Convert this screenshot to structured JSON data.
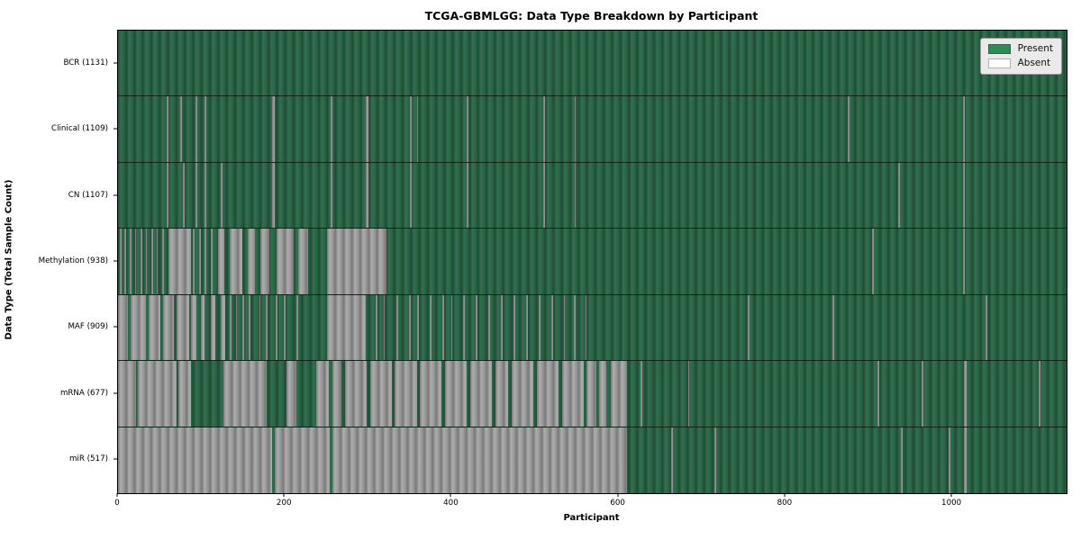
{
  "title": "TCGA-GBMLGG: Data Type Breakdown by Participant",
  "colors": {
    "present": "#2e8b57",
    "absent": "#ffffff",
    "present_texture_dark": "#1e4c36",
    "present_texture_light": "#33704f",
    "absent_texture_dark": "#787878",
    "absent_texture_light": "#adadad",
    "axes_border": "#000000",
    "legend_background": "#eaeaea"
  },
  "chart_data": {
    "type": "heatmap",
    "title": "TCGA-GBMLGG: Data Type Breakdown by Participant",
    "xlabel": "Participant",
    "ylabel": "Data Type (Total Sample Count)",
    "x_ticks": [
      0,
      200,
      400,
      600,
      800,
      1000
    ],
    "x_range": [
      0,
      1137
    ],
    "total_participants": 1131,
    "grid": false,
    "legend_position": "upper right",
    "legend_items": [
      {
        "label": "Present",
        "color": "#2e8b57"
      },
      {
        "label": "Absent",
        "color": "#ffffff"
      }
    ],
    "cell_states": {
      "present": "green",
      "absent": "white"
    },
    "rows": [
      {
        "data_type": "BCR",
        "label": "BCR (1131)",
        "total": 1131,
        "absent_segments": []
      },
      {
        "data_type": "Clinical",
        "label": "Clinical (1109)",
        "total": 1109,
        "absent_segments": [
          [
            58,
            60
          ],
          [
            75,
            77
          ],
          [
            93,
            95
          ],
          [
            104,
            106
          ],
          [
            185,
            188
          ],
          [
            255,
            257
          ],
          [
            297,
            300
          ],
          [
            350,
            352
          ],
          [
            358,
            360
          ],
          [
            418,
            420
          ],
          [
            510,
            512
          ],
          [
            547,
            549
          ],
          [
            875,
            877
          ],
          [
            1013,
            1015
          ]
        ]
      },
      {
        "data_type": "CN",
        "label": "CN (1107)",
        "total": 1107,
        "absent_segments": [
          [
            58,
            60
          ],
          [
            78,
            80
          ],
          [
            93,
            95
          ],
          [
            104,
            106
          ],
          [
            123,
            125
          ],
          [
            185,
            188
          ],
          [
            255,
            257
          ],
          [
            297,
            300
          ],
          [
            350,
            352
          ],
          [
            418,
            420
          ],
          [
            510,
            512
          ],
          [
            547,
            549
          ],
          [
            935,
            937
          ],
          [
            1013,
            1015
          ]
        ]
      },
      {
        "data_type": "Methylation",
        "label": "Methylation (938)",
        "total": 938,
        "absent_segments": [
          [
            2,
            4
          ],
          [
            8,
            10
          ],
          [
            14,
            16
          ],
          [
            20,
            22
          ],
          [
            27,
            29
          ],
          [
            33,
            35
          ],
          [
            40,
            42
          ],
          [
            46,
            48
          ],
          [
            53,
            55
          ],
          [
            60,
            87
          ],
          [
            90,
            92
          ],
          [
            97,
            99
          ],
          [
            104,
            106
          ],
          [
            111,
            113
          ],
          [
            120,
            127
          ],
          [
            134,
            149
          ],
          [
            155,
            164
          ],
          [
            171,
            181
          ],
          [
            190,
            211
          ],
          [
            216,
            228
          ],
          [
            251,
            322
          ],
          [
            904,
            906
          ],
          [
            1013,
            1015
          ]
        ]
      },
      {
        "data_type": "MAF",
        "label": "MAF (909)",
        "total": 909,
        "absent_segments": [
          [
            0,
            12
          ],
          [
            15,
            34
          ],
          [
            37,
            51
          ],
          [
            54,
            67
          ],
          [
            70,
            85
          ],
          [
            88,
            94
          ],
          [
            99,
            104
          ],
          [
            111,
            117
          ],
          [
            123,
            128
          ],
          [
            134,
            136
          ],
          [
            141,
            143
          ],
          [
            149,
            151
          ],
          [
            157,
            159
          ],
          [
            169,
            171
          ],
          [
            177,
            179
          ],
          [
            189,
            191
          ],
          [
            199,
            201
          ],
          [
            214,
            216
          ],
          [
            251,
            297
          ],
          [
            309,
            311
          ],
          [
            318,
            320
          ],
          [
            334,
            336
          ],
          [
            349,
            351
          ],
          [
            359,
            361
          ],
          [
            374,
            376
          ],
          [
            389,
            391
          ],
          [
            399,
            401
          ],
          [
            414,
            416
          ],
          [
            429,
            431
          ],
          [
            444,
            446
          ],
          [
            459,
            461
          ],
          [
            474,
            476
          ],
          [
            489,
            491
          ],
          [
            504,
            506
          ],
          [
            519,
            521
          ],
          [
            534,
            536
          ],
          [
            546,
            548
          ],
          [
            560,
            562
          ],
          [
            755,
            757
          ],
          [
            856,
            858
          ],
          [
            1040,
            1042
          ]
        ]
      },
      {
        "data_type": "mRNA",
        "label": "mRNA (677)",
        "total": 677,
        "absent_segments": [
          [
            0,
            22
          ],
          [
            24,
            70
          ],
          [
            72,
            88
          ],
          [
            126,
            178
          ],
          [
            202,
            214
          ],
          [
            238,
            253
          ],
          [
            257,
            268
          ],
          [
            272,
            298
          ],
          [
            302,
            328
          ],
          [
            332,
            358
          ],
          [
            362,
            388
          ],
          [
            392,
            418
          ],
          [
            422,
            448
          ],
          [
            452,
            468
          ],
          [
            472,
            498
          ],
          [
            502,
            528
          ],
          [
            532,
            558
          ],
          [
            562,
            573
          ],
          [
            577,
            585
          ],
          [
            591,
            610
          ],
          [
            626,
            628
          ],
          [
            683,
            685
          ],
          [
            910,
            912
          ],
          [
            963,
            965
          ],
          [
            1014,
            1017
          ],
          [
            1104,
            1106
          ]
        ]
      },
      {
        "data_type": "miR",
        "label": "miR (517)",
        "total": 517,
        "absent_segments": [
          [
            0,
            185
          ],
          [
            188,
            254
          ],
          [
            257,
            610
          ],
          [
            663,
            665
          ],
          [
            715,
            717
          ],
          [
            938,
            940
          ],
          [
            996,
            998
          ],
          [
            1014,
            1017
          ]
        ]
      }
    ]
  }
}
